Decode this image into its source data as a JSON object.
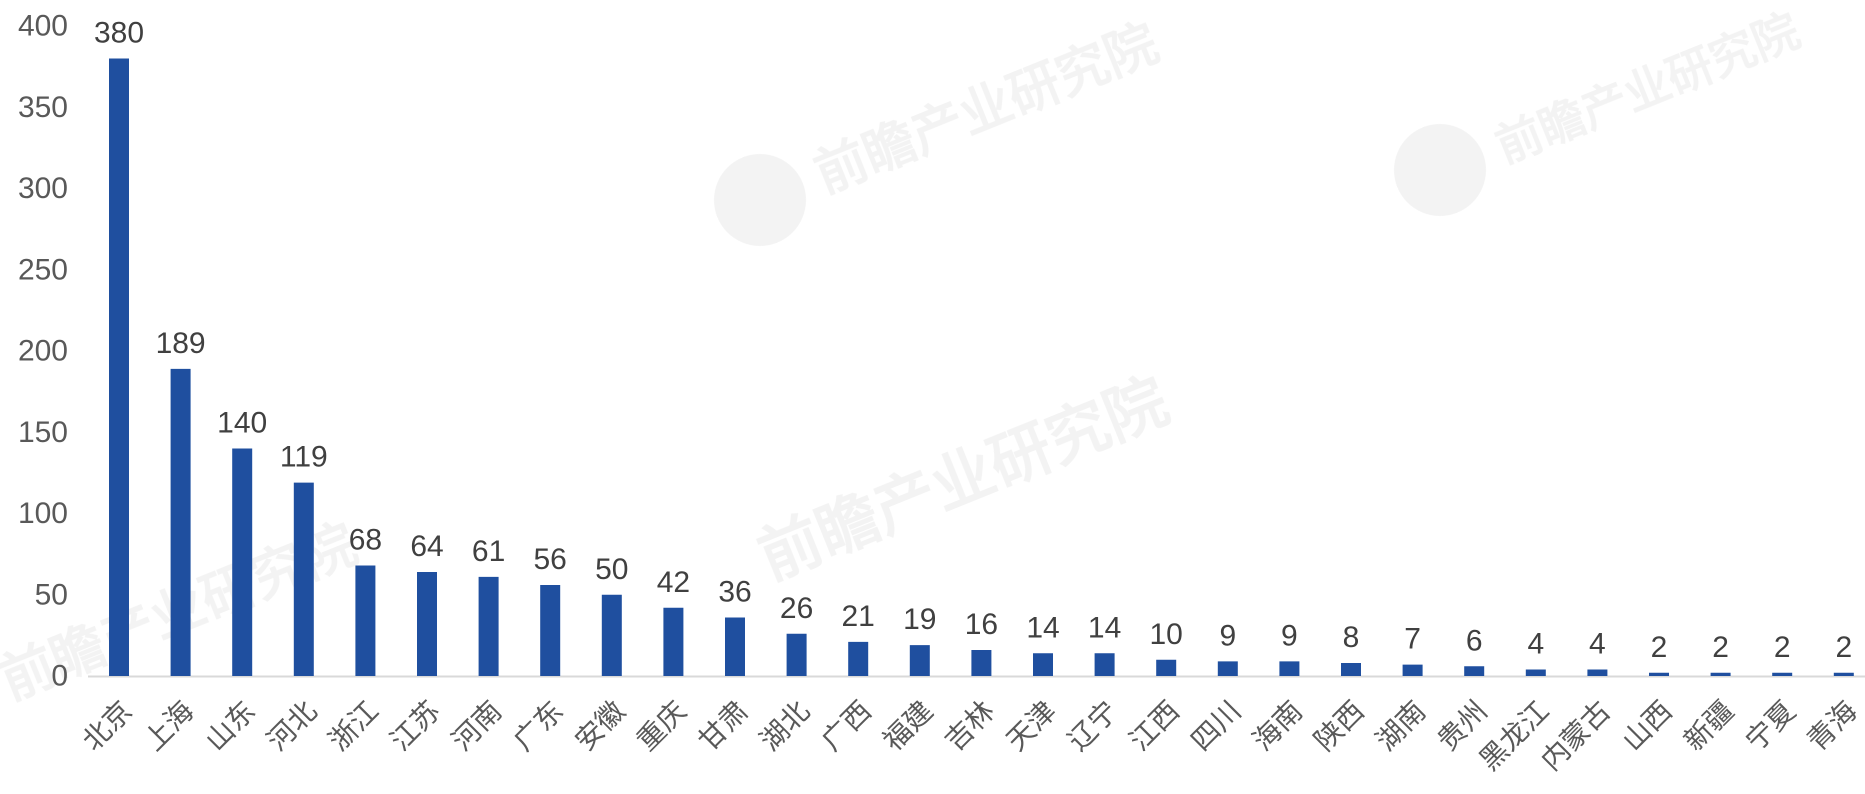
{
  "watermark": {
    "text": "前瞻产业研究院"
  },
  "chart_data": {
    "type": "bar",
    "categories": [
      "北京",
      "上海",
      "山东",
      "河北",
      "浙江",
      "江苏",
      "河南",
      "广东",
      "安徽",
      "重庆",
      "甘肃",
      "湖北",
      "广西",
      "福建",
      "吉林",
      "天津",
      "辽宁",
      "江西",
      "四川",
      "海南",
      "陕西",
      "湖南",
      "贵州",
      "黑龙江",
      "内蒙古",
      "山西",
      "新疆",
      "宁夏",
      "青海"
    ],
    "values": [
      380,
      189,
      140,
      119,
      68,
      64,
      61,
      56,
      50,
      42,
      36,
      26,
      21,
      19,
      16,
      14,
      14,
      10,
      9,
      9,
      8,
      7,
      6,
      4,
      4,
      2,
      2,
      2,
      2
    ],
    "ylim": [
      0,
      400
    ],
    "yticks": [
      0,
      50,
      100,
      150,
      200,
      250,
      300,
      350,
      400
    ],
    "grid": false,
    "legend": "none",
    "data_labels": true,
    "x_label_rotation": "-45deg",
    "colors": {
      "bar": "#1f4f9f",
      "axis_line": "#d9d9d9",
      "tick_label": "#595959",
      "data_label": "#404040",
      "watermark": "#000000"
    }
  }
}
